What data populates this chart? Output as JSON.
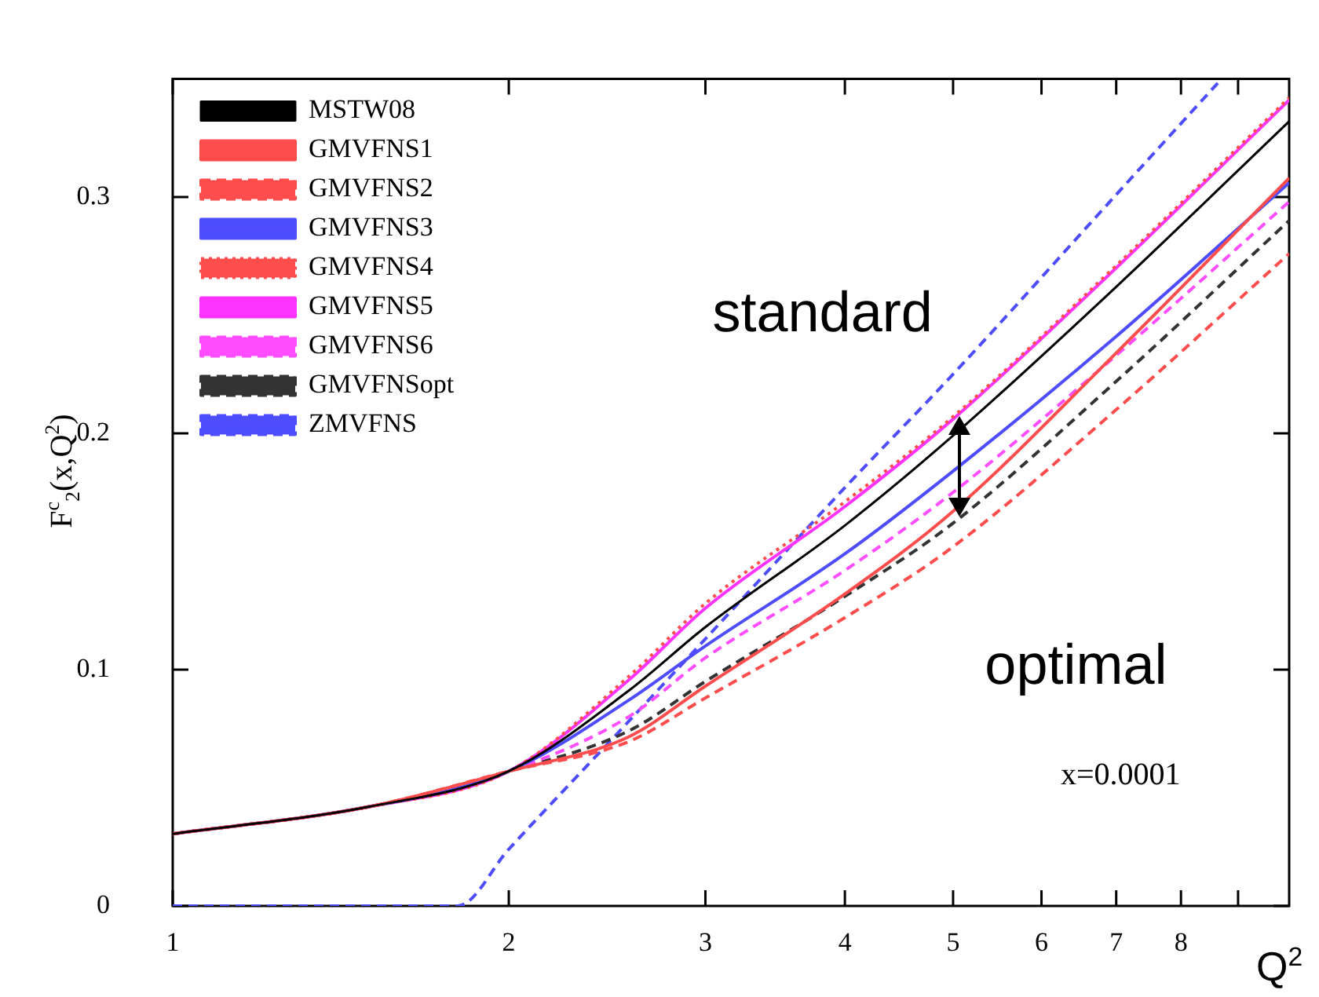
{
  "chart_data": {
    "type": "line",
    "xlabel": "Q$^{2}$",
    "ylabel": "F$^{c}$$_{2}$(x,Q$^{2}$)",
    "annotations": [
      "standard",
      "optimal",
      "x=0.0001"
    ],
    "log": "x",
    "legend": "top left",
    "marker": "none",
    "xlim": [
      1,
      10
    ],
    "xticks": [
      1,
      2,
      3,
      4,
      5,
      6,
      7,
      8,
      {
        "value": 9,
        "label": null
      }
    ],
    "ylim": [
      0,
      0.35
    ],
    "yticks": [
      0,
      0.1,
      0.2,
      0.3
    ],
    "x": [
      1,
      1.5,
      2,
      2.56,
      3,
      4,
      5,
      7,
      10
    ],
    "series": [
      {
        "name": "MSTW08",
        "color": "#000000",
        "line_style": "solid",
        "values": [
          0.0305,
          0.042,
          0.057,
          0.091,
          0.118,
          0.161,
          0.199,
          0.262,
          0.332
        ]
      },
      {
        "name": "GMVFNS1",
        "color": "#ff4d4d",
        "line_style": "solid",
        "values": [
          0.0305,
          0.042,
          0.057,
          0.0715,
          0.093,
          0.132,
          0.167,
          0.234,
          0.308
        ]
      },
      {
        "name": "GMVFNS2",
        "color": "#ff4d4d",
        "line_style": "dashed",
        "values": [
          0.0305,
          0.042,
          0.057,
          0.0695,
          0.088,
          0.122,
          0.152,
          0.21,
          0.276
        ]
      },
      {
        "name": "GMVFNS3",
        "color": "#4d4dff",
        "line_style": "solid",
        "values": [
          0.0305,
          0.042,
          0.057,
          0.087,
          0.11,
          0.149,
          0.184,
          0.241,
          0.306
        ]
      },
      {
        "name": "GMVFNS4",
        "color": "#ff4d4d",
        "line_style": "dotted",
        "values": [
          0.0305,
          0.042,
          0.057,
          0.097,
          0.128,
          0.171,
          0.207,
          0.271,
          0.342
        ]
      },
      {
        "name": "GMVFNS5",
        "color": "#ff33ff",
        "line_style": "solid",
        "values": [
          0.0305,
          0.042,
          0.057,
          0.0955,
          0.126,
          0.169,
          0.206,
          0.27,
          0.341
        ]
      },
      {
        "name": "GMVFNS6",
        "color": "#ff4dff",
        "line_style": "dashed",
        "values": [
          0.0305,
          0.042,
          0.057,
          0.08,
          0.105,
          0.142,
          0.175,
          0.233,
          0.298
        ]
      },
      {
        "name": "GMVFNSopt",
        "color": "#333333",
        "line_style": "dashed",
        "values": [
          0.0305,
          0.042,
          0.057,
          0.074,
          0.095,
          0.131,
          0.162,
          0.222,
          0.29
        ]
      },
      {
        "name": "ZMVFNS",
        "color": "#4d4dff",
        "line_style": "dashed",
        "x": [
          1,
          1.8,
          2,
          2.56,
          3,
          4,
          5,
          7,
          8.7
        ],
        "values": [
          0,
          0,
          0.024,
          0.078,
          0.113,
          0.177,
          0.225,
          0.301,
          0.35
        ]
      }
    ]
  }
}
